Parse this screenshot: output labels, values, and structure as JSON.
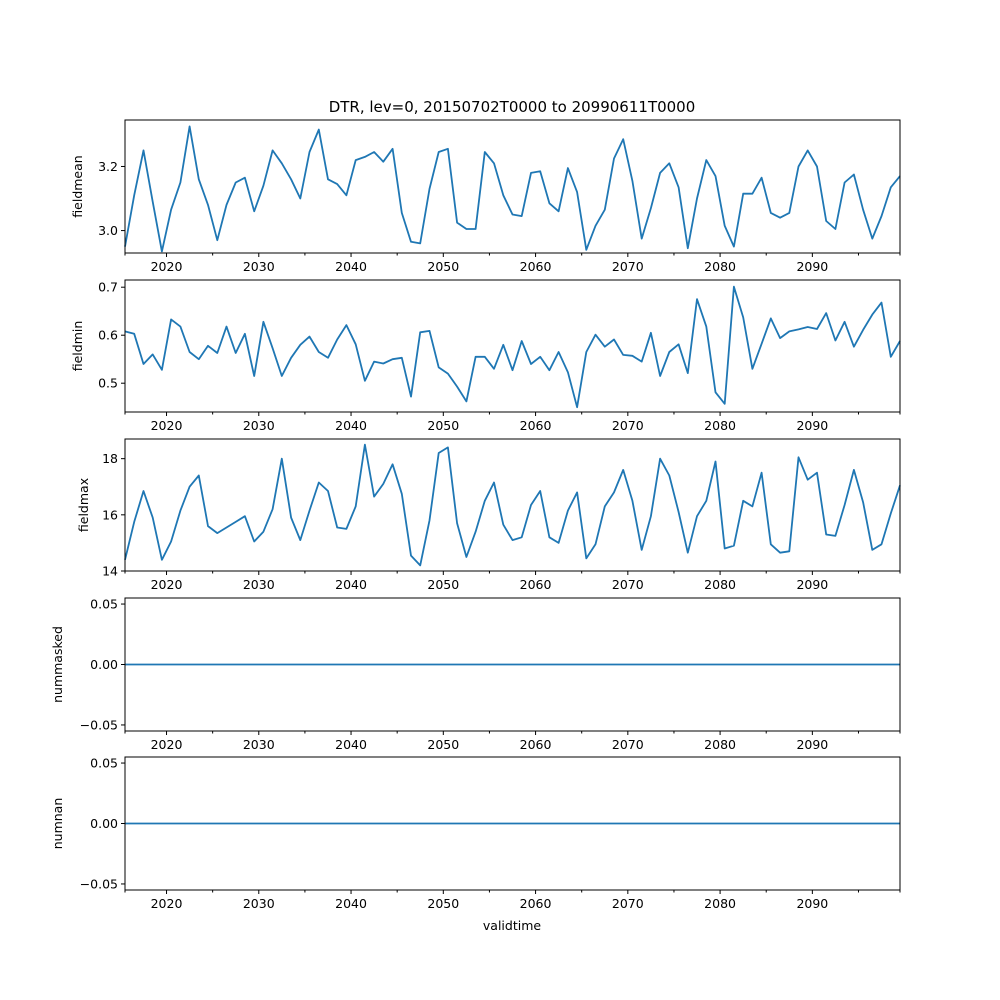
{
  "figure": {
    "title": "DTR, lev=0, 20150702T0000 to 20990611T0000",
    "xlabel": "validtime",
    "line_color": "#1f77b4"
  },
  "chart_data": [
    {
      "type": "line",
      "name": "fieldmean",
      "ylabel": "fieldmean",
      "xlim": [
        2015.5,
        2099.5
      ],
      "ylim": [
        2.93,
        3.345
      ],
      "yticks": [
        3.0,
        3.2
      ],
      "ytick_labels": [
        "3.0",
        "3.2"
      ],
      "xticks": [
        2020,
        2030,
        2040,
        2050,
        2060,
        2070,
        2080,
        2090
      ],
      "xtick_labels": [
        "2020",
        "2030",
        "2040",
        "2050",
        "2060",
        "2070",
        "2080",
        "2090"
      ],
      "x": [
        2015.5,
        2016.5,
        2017.5,
        2018.5,
        2019.5,
        2020.5,
        2021.5,
        2022.5,
        2023.5,
        2024.5,
        2025.5,
        2026.5,
        2027.5,
        2028.5,
        2029.5,
        2030.5,
        2031.5,
        2032.5,
        2033.5,
        2034.5,
        2035.5,
        2036.5,
        2037.5,
        2038.5,
        2039.5,
        2040.5,
        2041.5,
        2042.5,
        2043.5,
        2044.5,
        2045.5,
        2046.5,
        2047.5,
        2048.5,
        2049.5,
        2050.5,
        2051.5,
        2052.5,
        2053.5,
        2054.5,
        2055.5,
        2056.5,
        2057.5,
        2058.5,
        2059.5,
        2060.5,
        2061.5,
        2062.5,
        2063.5,
        2064.5,
        2065.5,
        2066.5,
        2067.5,
        2068.5,
        2069.5,
        2070.5,
        2071.5,
        2072.5,
        2073.5,
        2074.5,
        2075.5,
        2076.5,
        2077.5,
        2078.5,
        2079.5,
        2080.5,
        2081.5,
        2082.5,
        2083.5,
        2084.5,
        2085.5,
        2086.5,
        2087.5,
        2088.5,
        2089.5,
        2090.5,
        2091.5,
        2092.5,
        2093.5,
        2094.5,
        2095.5,
        2096.5,
        2097.5,
        2098.5,
        2099.5
      ],
      "y": [
        2.95,
        3.11,
        3.25,
        3.09,
        2.935,
        3.065,
        3.15,
        3.325,
        3.16,
        3.08,
        2.97,
        3.08,
        3.15,
        3.165,
        3.06,
        3.14,
        3.25,
        3.21,
        3.16,
        3.1,
        3.245,
        3.315,
        3.16,
        3.145,
        3.11,
        3.22,
        3.23,
        3.245,
        3.215,
        3.255,
        3.055,
        2.965,
        2.96,
        3.13,
        3.245,
        3.255,
        3.025,
        3.005,
        3.005,
        3.245,
        3.21,
        3.11,
        3.05,
        3.045,
        3.18,
        3.185,
        3.085,
        3.06,
        3.195,
        3.12,
        2.94,
        3.015,
        3.065,
        3.225,
        3.285,
        3.155,
        2.975,
        3.07,
        3.18,
        3.21,
        3.135,
        2.945,
        3.1,
        3.22,
        3.17,
        3.015,
        2.95,
        3.115,
        3.115,
        3.165,
        3.055,
        3.04,
        3.055,
        3.2,
        3.25,
        3.2,
        3.03,
        3.005,
        3.15,
        3.175,
        3.065,
        2.975,
        3.045,
        3.135,
        3.17
      ]
    },
    {
      "type": "line",
      "name": "fieldmin",
      "ylabel": "fieldmin",
      "xlim": [
        2015.5,
        2099.5
      ],
      "ylim": [
        0.44,
        0.715
      ],
      "yticks": [
        0.5,
        0.6,
        0.7
      ],
      "ytick_labels": [
        "0.5",
        "0.6",
        "0.7"
      ],
      "xticks": [
        2020,
        2030,
        2040,
        2050,
        2060,
        2070,
        2080,
        2090
      ],
      "xtick_labels": [
        "2020",
        "2030",
        "2040",
        "2050",
        "2060",
        "2070",
        "2080",
        "2090"
      ],
      "x": [
        2015.5,
        2016.5,
        2017.5,
        2018.5,
        2019.5,
        2020.5,
        2021.5,
        2022.5,
        2023.5,
        2024.5,
        2025.5,
        2026.5,
        2027.5,
        2028.5,
        2029.5,
        2030.5,
        2031.5,
        2032.5,
        2033.5,
        2034.5,
        2035.5,
        2036.5,
        2037.5,
        2038.5,
        2039.5,
        2040.5,
        2041.5,
        2042.5,
        2043.5,
        2044.5,
        2045.5,
        2046.5,
        2047.5,
        2048.5,
        2049.5,
        2050.5,
        2051.5,
        2052.5,
        2053.5,
        2054.5,
        2055.5,
        2056.5,
        2057.5,
        2058.5,
        2059.5,
        2060.5,
        2061.5,
        2062.5,
        2063.5,
        2064.5,
        2065.5,
        2066.5,
        2067.5,
        2068.5,
        2069.5,
        2070.5,
        2071.5,
        2072.5,
        2073.5,
        2074.5,
        2075.5,
        2076.5,
        2077.5,
        2078.5,
        2079.5,
        2080.5,
        2081.5,
        2082.5,
        2083.5,
        2084.5,
        2085.5,
        2086.5,
        2087.5,
        2088.5,
        2089.5,
        2090.5,
        2091.5,
        2092.5,
        2093.5,
        2094.5,
        2095.5,
        2096.5,
        2097.5,
        2098.5,
        2099.5
      ],
      "y": [
        0.608,
        0.603,
        0.54,
        0.56,
        0.528,
        0.633,
        0.618,
        0.565,
        0.55,
        0.578,
        0.563,
        0.618,
        0.563,
        0.603,
        0.515,
        0.628,
        0.573,
        0.515,
        0.553,
        0.58,
        0.597,
        0.565,
        0.553,
        0.591,
        0.621,
        0.581,
        0.505,
        0.545,
        0.541,
        0.55,
        0.553,
        0.472,
        0.606,
        0.609,
        0.533,
        0.52,
        0.493,
        0.462,
        0.555,
        0.555,
        0.53,
        0.58,
        0.527,
        0.588,
        0.54,
        0.555,
        0.527,
        0.565,
        0.523,
        0.45,
        0.565,
        0.601,
        0.576,
        0.591,
        0.559,
        0.557,
        0.545,
        0.605,
        0.515,
        0.565,
        0.581,
        0.521,
        0.675,
        0.618,
        0.481,
        0.457,
        0.701,
        0.637,
        0.53,
        0.582,
        0.635,
        0.594,
        0.608,
        0.612,
        0.617,
        0.613,
        0.646,
        0.589,
        0.628,
        0.576,
        0.611,
        0.643,
        0.668,
        0.555,
        0.588
      ]
    },
    {
      "type": "line",
      "name": "fieldmax",
      "ylabel": "fieldmax",
      "xlim": [
        2015.5,
        2099.5
      ],
      "ylim": [
        14.0,
        18.7
      ],
      "yticks": [
        14,
        16,
        18
      ],
      "ytick_labels": [
        "14",
        "16",
        "18"
      ],
      "xticks": [
        2020,
        2030,
        2040,
        2050,
        2060,
        2070,
        2080,
        2090
      ],
      "xtick_labels": [
        "2020",
        "2030",
        "2040",
        "2050",
        "2060",
        "2070",
        "2080",
        "2090"
      ],
      "x": [
        2015.5,
        2016.5,
        2017.5,
        2018.5,
        2019.5,
        2020.5,
        2021.5,
        2022.5,
        2023.5,
        2024.5,
        2025.5,
        2026.5,
        2027.5,
        2028.5,
        2029.5,
        2030.5,
        2031.5,
        2032.5,
        2033.5,
        2034.5,
        2035.5,
        2036.5,
        2037.5,
        2038.5,
        2039.5,
        2040.5,
        2041.5,
        2042.5,
        2043.5,
        2044.5,
        2045.5,
        2046.5,
        2047.5,
        2048.5,
        2049.5,
        2050.5,
        2051.5,
        2052.5,
        2053.5,
        2054.5,
        2055.5,
        2056.5,
        2057.5,
        2058.5,
        2059.5,
        2060.5,
        2061.5,
        2062.5,
        2063.5,
        2064.5,
        2065.5,
        2066.5,
        2067.5,
        2068.5,
        2069.5,
        2070.5,
        2071.5,
        2072.5,
        2073.5,
        2074.5,
        2075.5,
        2076.5,
        2077.5,
        2078.5,
        2079.5,
        2080.5,
        2081.5,
        2082.5,
        2083.5,
        2084.5,
        2085.5,
        2086.5,
        2087.5,
        2088.5,
        2089.5,
        2090.5,
        2091.5,
        2092.5,
        2093.5,
        2094.5,
        2095.5,
        2096.5,
        2097.5,
        2098.5,
        2099.5
      ],
      "y": [
        14.4,
        15.75,
        16.85,
        15.9,
        14.4,
        15.05,
        16.15,
        17.0,
        17.4,
        15.6,
        15.35,
        15.55,
        15.75,
        15.95,
        15.05,
        15.4,
        16.2,
        18.0,
        15.9,
        15.1,
        16.15,
        17.15,
        16.85,
        15.55,
        15.5,
        16.3,
        18.5,
        16.65,
        17.1,
        17.8,
        16.75,
        14.55,
        14.2,
        15.8,
        18.2,
        18.4,
        15.7,
        14.5,
        15.4,
        16.5,
        17.15,
        15.65,
        15.1,
        15.2,
        16.35,
        16.85,
        15.2,
        15.0,
        16.15,
        16.8,
        14.45,
        14.95,
        16.3,
        16.8,
        17.6,
        16.5,
        14.75,
        15.95,
        18.0,
        17.4,
        16.1,
        14.65,
        15.95,
        16.5,
        17.9,
        14.8,
        14.9,
        16.5,
        16.3,
        17.5,
        14.95,
        14.65,
        14.7,
        18.05,
        17.25,
        17.5,
        15.3,
        15.25,
        16.35,
        17.6,
        16.45,
        14.75,
        14.95,
        16.05,
        17.05
      ]
    },
    {
      "type": "line",
      "name": "nummasked",
      "ylabel": "nummasked",
      "xlim": [
        2015.5,
        2099.5
      ],
      "ylim": [
        -0.055,
        0.055
      ],
      "yticks": [
        -0.05,
        0.0,
        0.05
      ],
      "ytick_labels": [
        "−0.05",
        "0.00",
        "0.05"
      ],
      "xticks": [
        2020,
        2030,
        2040,
        2050,
        2060,
        2070,
        2080,
        2090
      ],
      "xtick_labels": [
        "2020",
        "2030",
        "2040",
        "2050",
        "2060",
        "2070",
        "2080",
        "2090"
      ],
      "x": [
        2015.5,
        2099.5
      ],
      "y": [
        0,
        0
      ]
    },
    {
      "type": "line",
      "name": "numnan",
      "ylabel": "numnan",
      "xlim": [
        2015.5,
        2099.5
      ],
      "ylim": [
        -0.055,
        0.055
      ],
      "yticks": [
        -0.05,
        0.0,
        0.05
      ],
      "ytick_labels": [
        "−0.05",
        "0.00",
        "0.05"
      ],
      "xticks": [
        2020,
        2030,
        2040,
        2050,
        2060,
        2070,
        2080,
        2090
      ],
      "xtick_labels": [
        "2020",
        "2030",
        "2040",
        "2050",
        "2060",
        "2070",
        "2080",
        "2090"
      ],
      "x": [
        2015.5,
        2099.5
      ],
      "y": [
        0,
        0
      ]
    }
  ]
}
